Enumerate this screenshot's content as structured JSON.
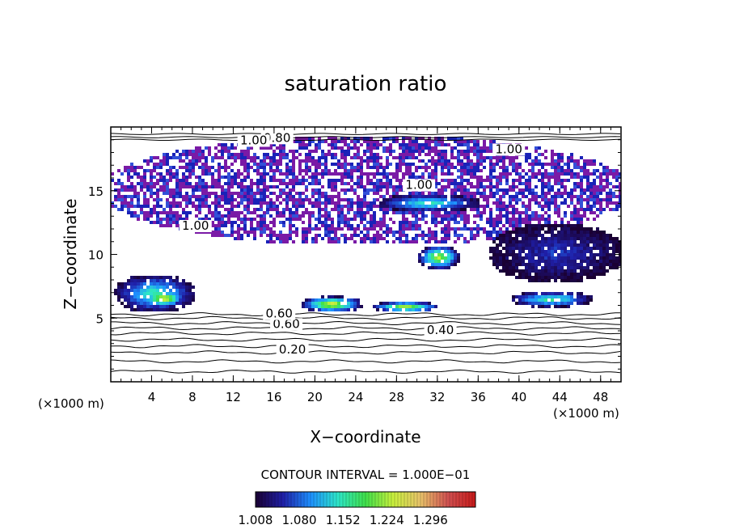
{
  "chart_data": {
    "type": "heatmap",
    "title": "saturation ratio",
    "xlabel": "X−coordinate",
    "ylabel": "Z−coordinate",
    "x_unit_label": "(×1000 m)",
    "y_unit_label": "(×1000 m)",
    "xlim": [
      0,
      50
    ],
    "ylim": [
      0,
      20
    ],
    "x_ticks": [
      "4",
      "8",
      "12",
      "16",
      "20",
      "24",
      "28",
      "32",
      "36",
      "40",
      "44",
      "48"
    ],
    "x_tick_values": [
      4,
      8,
      12,
      16,
      20,
      24,
      28,
      32,
      36,
      40,
      44,
      48
    ],
    "y_ticks": [
      "5",
      "10",
      "15"
    ],
    "y_tick_values": [
      5,
      10,
      15
    ],
    "contour_interval_text": "CONTOUR INTERVAL = 1.000E−01",
    "contour_labels": [
      {
        "text": "0.20",
        "x": 17.8,
        "z": 2.3
      },
      {
        "text": "0.40",
        "x": 32.3,
        "z": 3.8
      },
      {
        "text": "0.60",
        "x": 17.2,
        "z": 4.3
      },
      {
        "text": "0.60",
        "x": 16.5,
        "z": 5.1
      },
      {
        "text": "0.80",
        "x": 16.3,
        "z": 18.9
      },
      {
        "text": "1.00",
        "x": 14.0,
        "z": 18.7
      },
      {
        "text": "1.00",
        "x": 39.0,
        "z": 18.0
      },
      {
        "text": "1.00",
        "x": 30.2,
        "z": 15.2
      },
      {
        "text": "1.00",
        "x": 8.3,
        "z": 12.0
      }
    ],
    "colorbar": {
      "labels": [
        "1.008",
        "1.080",
        "1.152",
        "1.224",
        "1.296"
      ],
      "values": [
        1.008,
        1.08,
        1.152,
        1.224,
        1.296
      ],
      "min": 1.008,
      "max": 1.37,
      "colors": [
        "#1a0033",
        "#1f1fa8",
        "#1e90ff",
        "#2ee6c8",
        "#3fe04a",
        "#c8f03c",
        "#e8c26a",
        "#d05050",
        "#c81a1a"
      ]
    },
    "supersaturated_color": "#7a1aa6",
    "moist_regions": [
      {
        "x0": 0,
        "x1": 50,
        "z0": 11.0,
        "z1": 19.3,
        "level": 1.0
      },
      {
        "x0": 0.3,
        "x1": 8.0,
        "z0": 5.6,
        "z1": 8.5,
        "level": 1.15
      },
      {
        "x0": 3.0,
        "x1": 7.0,
        "z0": 6.0,
        "z1": 7.3,
        "level": 1.25
      },
      {
        "x0": 18.5,
        "x1": 24.5,
        "z0": 5.6,
        "z1": 6.8,
        "level": 1.24
      },
      {
        "x0": 25.5,
        "x1": 32.0,
        "z0": 5.6,
        "z1": 6.4,
        "level": 1.22
      },
      {
        "x0": 30.0,
        "x1": 34.0,
        "z0": 9.0,
        "z1": 10.8,
        "level": 1.22
      },
      {
        "x0": 26.0,
        "x1": 36.0,
        "z0": 13.5,
        "z1": 14.8,
        "level": 1.15
      },
      {
        "x0": 39.0,
        "x1": 47.0,
        "z0": 6.0,
        "z1": 7.2,
        "level": 1.16
      },
      {
        "x0": 37.0,
        "x1": 50.0,
        "z0": 8.0,
        "z1": 12.5,
        "level": 1.06
      }
    ]
  }
}
